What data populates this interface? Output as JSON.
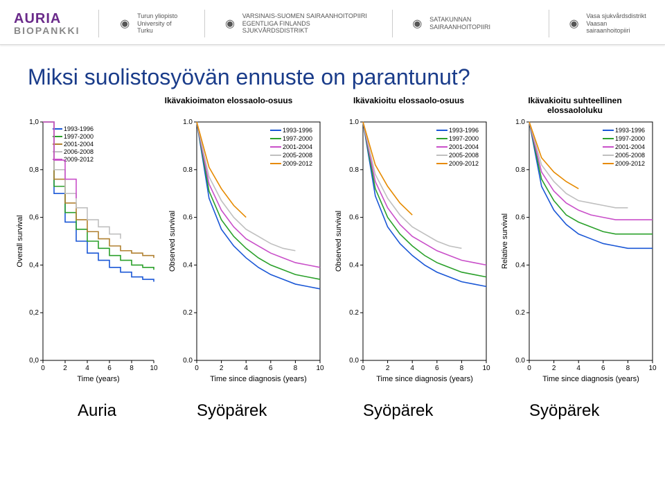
{
  "logo": {
    "top": "AURIA",
    "bottom": "BIOPANKKI"
  },
  "orgs": [
    {
      "l1": "Turun yliopisto",
      "l2": "University of Turku"
    },
    {
      "l1": "VARSINAIS-SUOMEN SAIRAANHOITOPIIRI",
      "l2": "EGENTLIGA FINLANDS SJUKVÅRDSDISTRIKT"
    },
    {
      "l1": "SATAKUNNAN SAIRAANHOITOPIIRI",
      "l2": ""
    },
    {
      "l1": "Vasa sjukvårdsdistrikt",
      "l2": "Vaasan sairaanhoitopiiri"
    }
  ],
  "title": "Miksi suolistosyövän ennuste on parantunut?",
  "column_headers": [
    "Ikävakioimaton elossaolo-osuus",
    "Ikävakioitu elossaolo-osuus",
    "Ikävakioitu suhteellinen elossaololuku"
  ],
  "row_labels": [
    "Auria",
    "Syöpärek",
    "Syöpärek",
    "Syöpärek"
  ],
  "auria": {
    "ylabel": "Overall survival",
    "xlabel": "Time (years)",
    "legend": [
      "1993-1996",
      "1997-2000",
      "2001-2004",
      "2006-2008",
      "2009-2012"
    ],
    "colors": [
      "#1a57d6",
      "#2aa02a",
      "#b08030",
      "#bfbfbf",
      "#c94fc9"
    ],
    "xticks": [
      0,
      2,
      4,
      6,
      8,
      10
    ],
    "yticks": [
      "0,0",
      "0,2",
      "0,4",
      "0,6",
      "0,8",
      "1,0"
    ],
    "series": [
      [
        [
          0,
          1.0
        ],
        [
          1,
          0.7
        ],
        [
          2,
          0.58
        ],
        [
          3,
          0.5
        ],
        [
          4,
          0.45
        ],
        [
          5,
          0.42
        ],
        [
          6,
          0.39
        ],
        [
          7,
          0.37
        ],
        [
          8,
          0.35
        ],
        [
          9,
          0.34
        ],
        [
          10,
          0.33
        ]
      ],
      [
        [
          0,
          1.0
        ],
        [
          1,
          0.73
        ],
        [
          2,
          0.62
        ],
        [
          3,
          0.55
        ],
        [
          4,
          0.5
        ],
        [
          5,
          0.47
        ],
        [
          6,
          0.44
        ],
        [
          7,
          0.42
        ],
        [
          8,
          0.4
        ],
        [
          9,
          0.39
        ],
        [
          10,
          0.38
        ]
      ],
      [
        [
          0,
          1.0
        ],
        [
          1,
          0.76
        ],
        [
          2,
          0.66
        ],
        [
          3,
          0.59
        ],
        [
          4,
          0.54
        ],
        [
          5,
          0.51
        ],
        [
          6,
          0.48
        ],
        [
          7,
          0.46
        ],
        [
          8,
          0.45
        ],
        [
          9,
          0.44
        ],
        [
          10,
          0.43
        ]
      ],
      [
        [
          0,
          1.0
        ],
        [
          1,
          0.8
        ],
        [
          2,
          0.7
        ],
        [
          3,
          0.64
        ],
        [
          4,
          0.59
        ],
        [
          5,
          0.56
        ],
        [
          6,
          0.53
        ],
        [
          7,
          0.51
        ]
      ],
      [
        [
          0,
          1.0
        ],
        [
          1,
          0.84
        ],
        [
          2,
          0.76
        ],
        [
          3,
          0.68
        ]
      ]
    ]
  },
  "syop": {
    "ylabel_obs": "Observed survival",
    "ylabel_rel": "Relative survival",
    "xlabel": "Time since diagnosis (years)",
    "legend": [
      "1993-1996",
      "1997-2000",
      "2001-2004",
      "2005-2008",
      "2009-2012"
    ],
    "colors": [
      "#1a57d6",
      "#2aa02a",
      "#c94fc9",
      "#bfbfbf",
      "#e68a00"
    ],
    "xticks": [
      0,
      2,
      4,
      6,
      8,
      10
    ],
    "yticks": [
      "0.0",
      "0.2",
      "0.4",
      "0.6",
      "0.8",
      "1.0"
    ],
    "panels": [
      {
        "label": "obs",
        "series": [
          [
            [
              0,
              1.0
            ],
            [
              1,
              0.68
            ],
            [
              2,
              0.55
            ],
            [
              3,
              0.48
            ],
            [
              4,
              0.43
            ],
            [
              5,
              0.39
            ],
            [
              6,
              0.36
            ],
            [
              7,
              0.34
            ],
            [
              8,
              0.32
            ],
            [
              9,
              0.31
            ],
            [
              10,
              0.3
            ]
          ],
          [
            [
              0,
              1.0
            ],
            [
              1,
              0.71
            ],
            [
              2,
              0.59
            ],
            [
              3,
              0.52
            ],
            [
              4,
              0.47
            ],
            [
              5,
              0.43
            ],
            [
              6,
              0.4
            ],
            [
              7,
              0.38
            ],
            [
              8,
              0.36
            ],
            [
              9,
              0.35
            ],
            [
              10,
              0.34
            ]
          ],
          [
            [
              0,
              1.0
            ],
            [
              1,
              0.74
            ],
            [
              2,
              0.63
            ],
            [
              3,
              0.56
            ],
            [
              4,
              0.51
            ],
            [
              5,
              0.48
            ],
            [
              6,
              0.45
            ],
            [
              7,
              0.43
            ],
            [
              8,
              0.41
            ],
            [
              9,
              0.4
            ],
            [
              10,
              0.39
            ]
          ],
          [
            [
              0,
              1.0
            ],
            [
              1,
              0.77
            ],
            [
              2,
              0.67
            ],
            [
              3,
              0.6
            ],
            [
              4,
              0.55
            ],
            [
              5,
              0.52
            ],
            [
              6,
              0.49
            ],
            [
              7,
              0.47
            ],
            [
              8,
              0.46
            ]
          ],
          [
            [
              0,
              1.0
            ],
            [
              1,
              0.81
            ],
            [
              2,
              0.72
            ],
            [
              3,
              0.65
            ],
            [
              4,
              0.6
            ]
          ]
        ]
      },
      {
        "label": "obs",
        "series": [
          [
            [
              0,
              1.0
            ],
            [
              1,
              0.69
            ],
            [
              2,
              0.56
            ],
            [
              3,
              0.49
            ],
            [
              4,
              0.44
            ],
            [
              5,
              0.4
            ],
            [
              6,
              0.37
            ],
            [
              7,
              0.35
            ],
            [
              8,
              0.33
            ],
            [
              9,
              0.32
            ],
            [
              10,
              0.31
            ]
          ],
          [
            [
              0,
              1.0
            ],
            [
              1,
              0.72
            ],
            [
              2,
              0.6
            ],
            [
              3,
              0.53
            ],
            [
              4,
              0.48
            ],
            [
              5,
              0.44
            ],
            [
              6,
              0.41
            ],
            [
              7,
              0.39
            ],
            [
              8,
              0.37
            ],
            [
              9,
              0.36
            ],
            [
              10,
              0.35
            ]
          ],
          [
            [
              0,
              1.0
            ],
            [
              1,
              0.75
            ],
            [
              2,
              0.64
            ],
            [
              3,
              0.57
            ],
            [
              4,
              0.52
            ],
            [
              5,
              0.49
            ],
            [
              6,
              0.46
            ],
            [
              7,
              0.44
            ],
            [
              8,
              0.42
            ],
            [
              9,
              0.41
            ],
            [
              10,
              0.4
            ]
          ],
          [
            [
              0,
              1.0
            ],
            [
              1,
              0.78
            ],
            [
              2,
              0.68
            ],
            [
              3,
              0.61
            ],
            [
              4,
              0.56
            ],
            [
              5,
              0.53
            ],
            [
              6,
              0.5
            ],
            [
              7,
              0.48
            ],
            [
              8,
              0.47
            ]
          ],
          [
            [
              0,
              1.0
            ],
            [
              1,
              0.82
            ],
            [
              2,
              0.73
            ],
            [
              3,
              0.66
            ],
            [
              4,
              0.61
            ]
          ]
        ]
      },
      {
        "label": "rel",
        "series": [
          [
            [
              0,
              1.0
            ],
            [
              1,
              0.73
            ],
            [
              2,
              0.63
            ],
            [
              3,
              0.57
            ],
            [
              4,
              0.53
            ],
            [
              5,
              0.51
            ],
            [
              6,
              0.49
            ],
            [
              7,
              0.48
            ],
            [
              8,
              0.47
            ],
            [
              9,
              0.47
            ],
            [
              10,
              0.47
            ]
          ],
          [
            [
              0,
              1.0
            ],
            [
              1,
              0.76
            ],
            [
              2,
              0.67
            ],
            [
              3,
              0.61
            ],
            [
              4,
              0.58
            ],
            [
              5,
              0.56
            ],
            [
              6,
              0.54
            ],
            [
              7,
              0.53
            ],
            [
              8,
              0.53
            ],
            [
              9,
              0.53
            ],
            [
              10,
              0.53
            ]
          ],
          [
            [
              0,
              1.0
            ],
            [
              1,
              0.79
            ],
            [
              2,
              0.71
            ],
            [
              3,
              0.66
            ],
            [
              4,
              0.63
            ],
            [
              5,
              0.61
            ],
            [
              6,
              0.6
            ],
            [
              7,
              0.59
            ],
            [
              8,
              0.59
            ],
            [
              9,
              0.59
            ],
            [
              10,
              0.59
            ]
          ],
          [
            [
              0,
              1.0
            ],
            [
              1,
              0.82
            ],
            [
              2,
              0.75
            ],
            [
              3,
              0.7
            ],
            [
              4,
              0.67
            ],
            [
              5,
              0.66
            ],
            [
              6,
              0.65
            ],
            [
              7,
              0.64
            ],
            [
              8,
              0.64
            ]
          ],
          [
            [
              0,
              1.0
            ],
            [
              1,
              0.85
            ],
            [
              2,
              0.79
            ],
            [
              3,
              0.75
            ],
            [
              4,
              0.72
            ]
          ]
        ]
      }
    ]
  },
  "style": {
    "line_width": 1.6,
    "legend_line_len": 18,
    "bg": "#ffffff"
  }
}
